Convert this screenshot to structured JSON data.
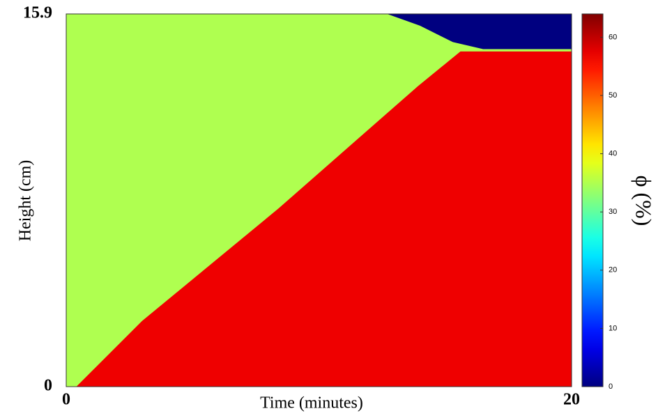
{
  "chart_data": {
    "type": "heatmap",
    "x_label": "Time (minutes)",
    "y_label": "Height (cm)",
    "colorbar_label": "ϕ (%)",
    "xlim": [
      0,
      20
    ],
    "ylim": [
      0,
      15.9
    ],
    "xticks": [
      0,
      20
    ],
    "yticks": [
      0,
      15.9
    ],
    "clim": [
      0,
      64
    ],
    "cticks": [
      0,
      10,
      20,
      30,
      40,
      50,
      60
    ],
    "colormap": "jet",
    "regions": [
      {
        "value": 35,
        "x": [
          0,
          20,
          20,
          0
        ],
        "y": [
          0,
          0,
          15.9,
          15.9
        ]
      },
      {
        "value": 57,
        "x": [
          0.4,
          20,
          20,
          15.6,
          13.9,
          8.4,
          3
        ],
        "y": [
          0,
          0,
          14.3,
          14.3,
          12.8,
          7.6,
          2.8
        ]
      },
      {
        "value": 0,
        "x": [
          12.7,
          20,
          20,
          16.5,
          15.3,
          14
        ],
        "y": [
          15.9,
          15.9,
          14.4,
          14.4,
          14.7,
          15.4
        ]
      }
    ]
  }
}
